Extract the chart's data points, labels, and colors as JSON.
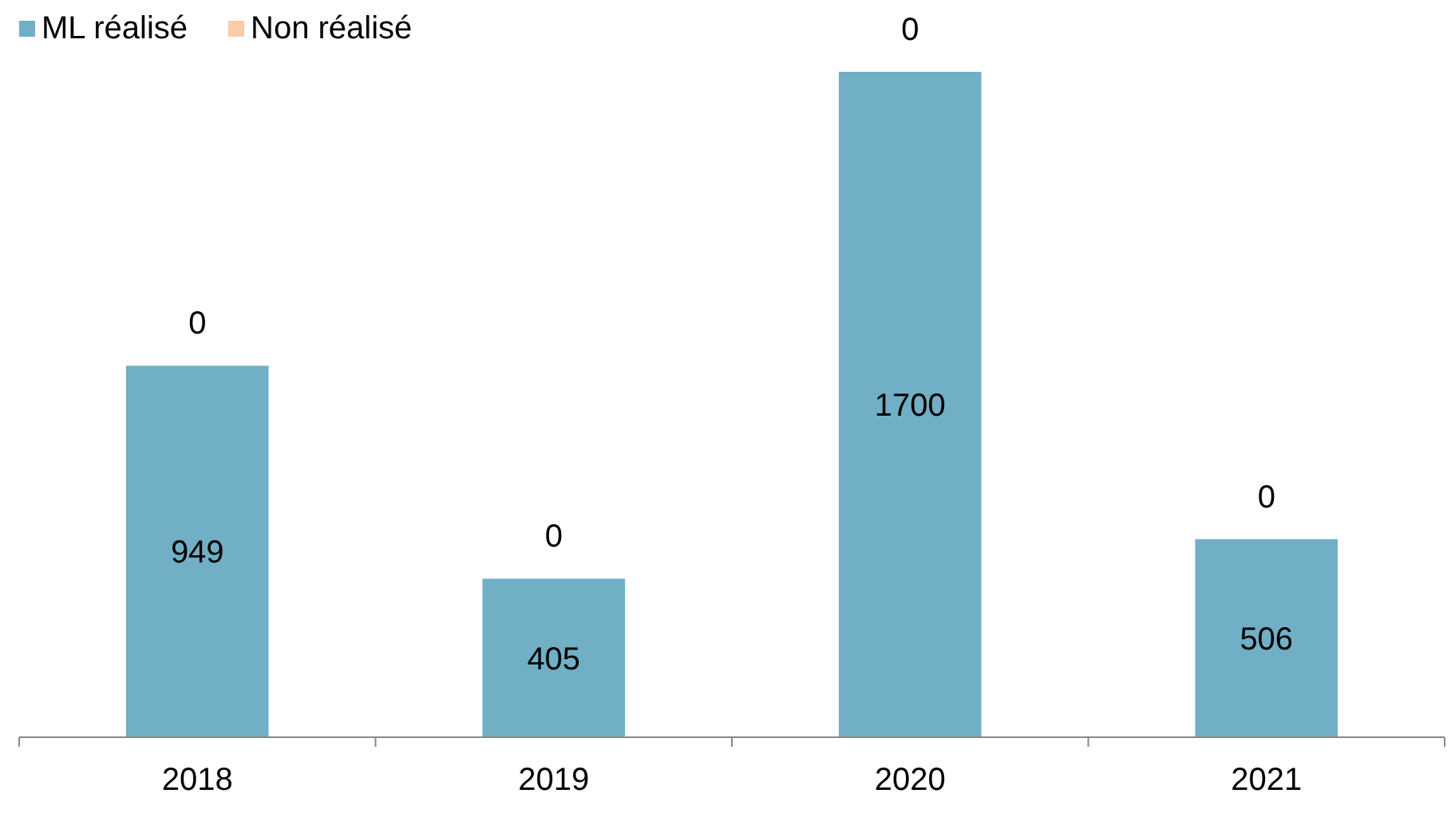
{
  "chart_data": {
    "type": "bar",
    "stacked": true,
    "categories": [
      "2018",
      "2019",
      "2020",
      "2021"
    ],
    "series": [
      {
        "name": "ML réalisé",
        "color": "#70afc5",
        "values": [
          949,
          405,
          1700,
          506
        ]
      },
      {
        "name": "Non réalisé",
        "color": "#f9cba7",
        "values": [
          0,
          0,
          0,
          0
        ]
      }
    ],
    "data_labels": true,
    "legend": "top left"
  }
}
